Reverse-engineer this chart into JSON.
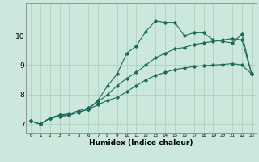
{
  "title": "",
  "xlabel": "Humidex (Indice chaleur)",
  "ylabel": "",
  "background_color": "#cce8dc",
  "plot_bg_color": "#cce8dc",
  "grid_color": "#aaccbb",
  "line_color": "#1a6b5a",
  "xlim": [
    -0.5,
    23.5
  ],
  "ylim": [
    6.7,
    11.1
  ],
  "yticks": [
    7,
    8,
    9,
    10
  ],
  "xticks": [
    0,
    1,
    2,
    3,
    4,
    5,
    6,
    7,
    8,
    9,
    10,
    11,
    12,
    13,
    14,
    15,
    16,
    17,
    18,
    19,
    20,
    21,
    22,
    23
  ],
  "line1_x": [
    0,
    1,
    2,
    3,
    4,
    5,
    6,
    7,
    8,
    9,
    10,
    11,
    12,
    13,
    14,
    15,
    16,
    17,
    18,
    19,
    20,
    21,
    22,
    23
  ],
  "line1_y": [
    7.1,
    7.0,
    7.2,
    7.3,
    7.3,
    7.4,
    7.5,
    7.8,
    8.3,
    8.7,
    9.4,
    9.65,
    10.15,
    10.5,
    10.45,
    10.45,
    10.0,
    10.1,
    10.1,
    9.85,
    9.8,
    9.75,
    10.05,
    8.7
  ],
  "line2_x": [
    0,
    1,
    2,
    3,
    4,
    5,
    6,
    7,
    8,
    9,
    10,
    11,
    12,
    13,
    14,
    15,
    16,
    17,
    18,
    19,
    20,
    21,
    22,
    23
  ],
  "line2_y": [
    7.1,
    7.0,
    7.2,
    7.3,
    7.35,
    7.45,
    7.55,
    7.75,
    8.0,
    8.3,
    8.55,
    8.75,
    9.0,
    9.25,
    9.4,
    9.55,
    9.6,
    9.7,
    9.75,
    9.8,
    9.85,
    9.9,
    9.85,
    8.7
  ],
  "line3_x": [
    0,
    1,
    2,
    3,
    4,
    5,
    6,
    7,
    8,
    9,
    10,
    11,
    12,
    13,
    14,
    15,
    16,
    17,
    18,
    19,
    20,
    21,
    22,
    23
  ],
  "line3_y": [
    7.1,
    7.0,
    7.2,
    7.25,
    7.3,
    7.4,
    7.5,
    7.65,
    7.8,
    7.9,
    8.1,
    8.3,
    8.5,
    8.65,
    8.75,
    8.85,
    8.9,
    8.95,
    8.98,
    9.0,
    9.02,
    9.05,
    9.0,
    8.7
  ]
}
